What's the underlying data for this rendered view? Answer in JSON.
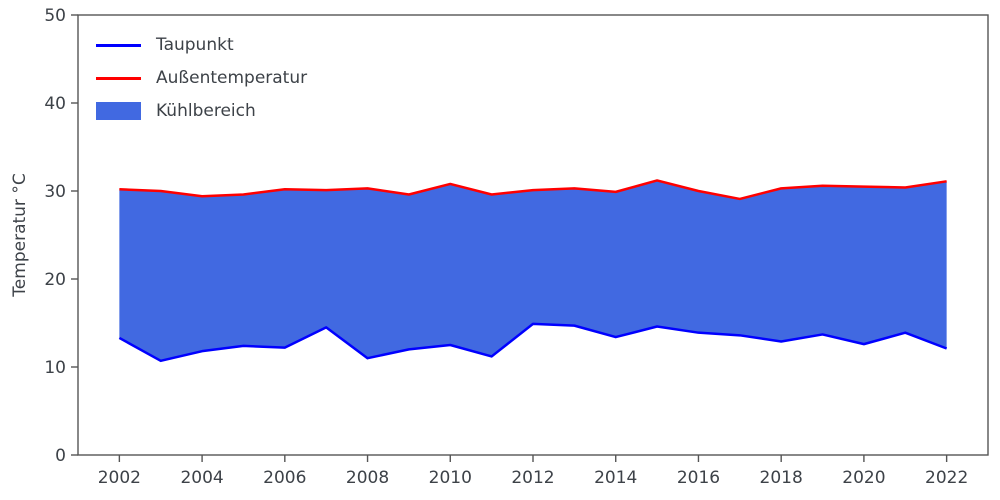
{
  "chart_data": {
    "type": "area",
    "title": "",
    "xlabel": "",
    "ylabel": "Temperatur °C",
    "x": [
      2002,
      2003,
      2004,
      2005,
      2006,
      2007,
      2008,
      2009,
      2010,
      2011,
      2012,
      2013,
      2014,
      2015,
      2016,
      2017,
      2018,
      2019,
      2020,
      2021,
      2022
    ],
    "series": [
      {
        "name": "Taupunkt",
        "color": "#0000ff",
        "values": [
          13.3,
          10.7,
          11.8,
          12.4,
          12.2,
          14.5,
          11.0,
          12.0,
          12.5,
          11.2,
          14.9,
          14.7,
          13.4,
          14.6,
          13.9,
          13.6,
          12.9,
          13.7,
          12.6,
          13.9,
          12.1
        ]
      },
      {
        "name": "Außentemperatur",
        "color": "#ff0000",
        "values": [
          30.2,
          30.0,
          29.4,
          29.6,
          30.2,
          30.1,
          30.3,
          29.6,
          30.8,
          29.6,
          30.1,
          30.3,
          29.9,
          31.2,
          30.0,
          29.1,
          30.3,
          30.6,
          30.5,
          30.4,
          31.1
        ]
      }
    ],
    "fill": {
      "name": "Kühlbereich",
      "color": "#4169e1"
    },
    "xlim": [
      2001,
      2023
    ],
    "ylim": [
      0,
      50
    ],
    "xticks": [
      2002,
      2004,
      2006,
      2008,
      2010,
      2012,
      2014,
      2016,
      2018,
      2020,
      2022
    ],
    "yticks": [
      0,
      10,
      20,
      30,
      40,
      50
    ],
    "grid": false,
    "legend_position": "upper-left",
    "axis_color": "#555555",
    "text_color": "#3d4248"
  }
}
